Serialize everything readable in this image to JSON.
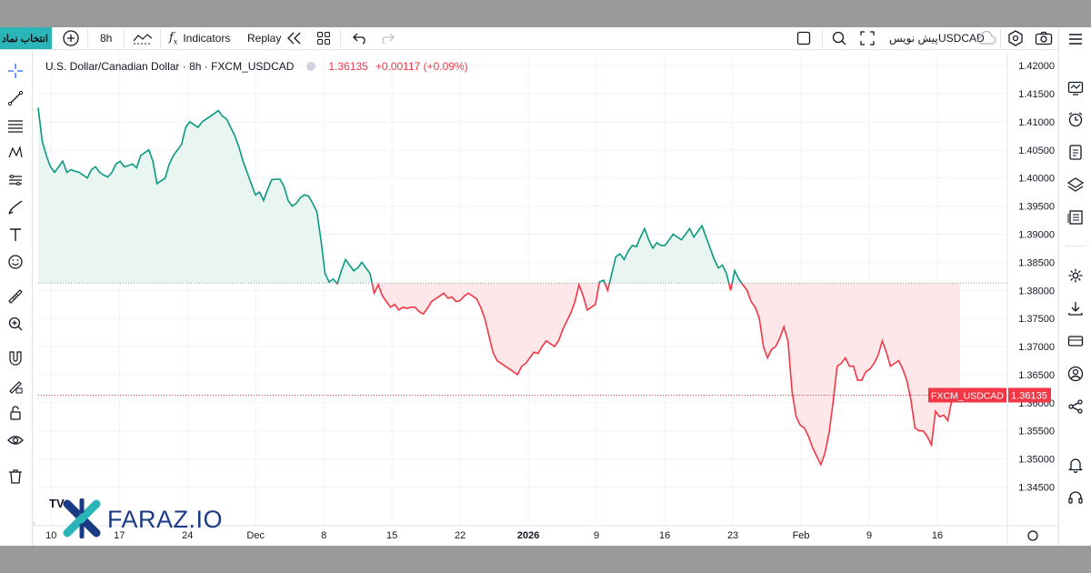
{
  "toolbar": {
    "symbol_button": "انتخاب نماد",
    "interval": "8h",
    "indicators": "Indicators",
    "replay": "Replay",
    "symbol_name": "USDCAD",
    "publish": "پیش نویس"
  },
  "legend": {
    "title": "U.S. Dollar/Canadian Dollar · 8h · FXCM_USDCAD",
    "price": "1.36135",
    "change": "+0.00117 (+0.09%)"
  },
  "watermark": {
    "tv": "TV",
    "brand": "FARAZ.IO"
  },
  "colors": {
    "up": "#089981",
    "down": "#f23645",
    "up_fill": "#e8f5f0",
    "down_fill": "#fde7e8",
    "brand": "#1a3a86",
    "accent": "#2bb5b8"
  },
  "icons": {
    "left": [
      "crosshair-icon",
      "trend-line-icon",
      "fib-icon",
      "pattern-icon",
      "forecast-icon",
      "brush-icon",
      "text-icon",
      "emoji-icon",
      "ruler-icon",
      "zoom-icon",
      "magnet-icon",
      "lock-draw-icon",
      "lock-icon",
      "eye-icon",
      "trash-icon"
    ],
    "right": [
      "menu-icon",
      "watchlist-icon",
      "alert-clock-icon",
      "notes-icon",
      "layers-icon",
      "news-icon",
      "settings-icon",
      "download-icon",
      "card-icon",
      "user-icon",
      "share-icon",
      "bell-icon",
      "support-icon"
    ]
  },
  "chart_data": {
    "type": "line",
    "symbol": "FXCM_USDCAD",
    "baseline": 1.3813,
    "last_price": 1.36135,
    "last_label": "FXCM_USDCAD",
    "ylim": [
      1.342,
      1.421
    ],
    "yticks": [
      "1.42000",
      "1.41500",
      "1.41000",
      "1.40500",
      "1.40000",
      "1.39500",
      "1.39000",
      "1.38500",
      "1.38000",
      "1.37500",
      "1.37000",
      "1.36500",
      "1.36000",
      "1.35500",
      "1.35000",
      "1.34500"
    ],
    "xticks": [
      {
        "label": "10",
        "i": 4
      },
      {
        "label": "17",
        "i": 25
      },
      {
        "label": "24",
        "i": 46
      },
      {
        "label": "Dec",
        "i": 67
      },
      {
        "label": "8",
        "i": 88
      },
      {
        "label": "15",
        "i": 109
      },
      {
        "label": "22",
        "i": 130
      },
      {
        "label": "2026",
        "i": 151
      },
      {
        "label": "9",
        "i": 172
      },
      {
        "label": "16",
        "i": 193
      },
      {
        "label": "23",
        "i": 214
      },
      {
        "label": "Feb",
        "i": 235
      },
      {
        "label": "9",
        "i": 256
      },
      {
        "label": "16",
        "i": 277
      }
    ],
    "n_slots": 285,
    "values": [
      1.4125,
      1.4065,
      1.404,
      1.402,
      1.401,
      1.402,
      1.403,
      1.401,
      1.4015,
      1.4012,
      1.401,
      1.4005,
      1.4,
      1.4015,
      1.402,
      1.401,
      1.4005,
      1.4002,
      1.401,
      1.4025,
      1.403,
      1.402,
      1.4022,
      1.4025,
      1.4018,
      1.404,
      1.4045,
      1.405,
      1.403,
      1.399,
      1.3995,
      1.4,
      1.4025,
      1.404,
      1.405,
      1.406,
      1.409,
      1.41,
      1.4095,
      1.409,
      1.41,
      1.4105,
      1.411,
      1.4115,
      1.412,
      1.411,
      1.4105,
      1.409,
      1.4075,
      1.4055,
      1.403,
      1.401,
      1.399,
      1.397,
      1.3975,
      1.396,
      1.398,
      1.3997,
      1.3998,
      1.3998,
      1.3985,
      1.396,
      1.395,
      1.3955,
      1.3965,
      1.397,
      1.3968,
      1.3955,
      1.394,
      1.389,
      1.383,
      1.3815,
      1.382,
      1.3812,
      1.3835,
      1.3855,
      1.3845,
      1.3835,
      1.384,
      1.385,
      1.384,
      1.383,
      1.3795,
      1.381,
      1.379,
      1.378,
      1.377,
      1.3775,
      1.3765,
      1.377,
      1.3768,
      1.377,
      1.377,
      1.3762,
      1.3758,
      1.3768,
      1.378,
      1.3785,
      1.379,
      1.3795,
      1.3786,
      1.3788,
      1.378,
      1.3782,
      1.379,
      1.3795,
      1.379,
      1.3785,
      1.377,
      1.375,
      1.372,
      1.369,
      1.3675,
      1.367,
      1.3665,
      1.366,
      1.3655,
      1.365,
      1.3665,
      1.367,
      1.368,
      1.369,
      1.3688,
      1.37,
      1.371,
      1.3705,
      1.37,
      1.371,
      1.373,
      1.3745,
      1.376,
      1.378,
      1.381,
      1.379,
      1.3765,
      1.377,
      1.3775,
      1.3815,
      1.3818,
      1.38,
      1.383,
      1.386,
      1.3865,
      1.3855,
      1.387,
      1.388,
      1.3878,
      1.3895,
      1.391,
      1.389,
      1.3875,
      1.3885,
      1.388,
      1.388,
      1.389,
      1.39,
      1.3895,
      1.389,
      1.39,
      1.391,
      1.3895,
      1.3905,
      1.3915,
      1.3895,
      1.3875,
      1.3855,
      1.384,
      1.3845,
      1.383,
      1.38,
      1.3835,
      1.382,
      1.381,
      1.38,
      1.378,
      1.377,
      1.375,
      1.37,
      1.368,
      1.3695,
      1.37,
      1.3715,
      1.3735,
      1.371,
      1.362,
      1.3575,
      1.356,
      1.3555,
      1.354,
      1.352,
      1.3505,
      1.349,
      1.351,
      1.3545,
      1.36,
      1.3665,
      1.367,
      1.368,
      1.3665,
      1.3665,
      1.364,
      1.364,
      1.3655,
      1.366,
      1.367,
      1.3685,
      1.371,
      1.369,
      1.3665,
      1.367,
      1.3675,
      1.366,
      1.364,
      1.3605,
      1.3555,
      1.355,
      1.355,
      1.354,
      1.3525,
      1.3585,
      1.3575,
      1.3578,
      1.3568,
      1.3605,
      1.361,
      1.36135
    ]
  }
}
